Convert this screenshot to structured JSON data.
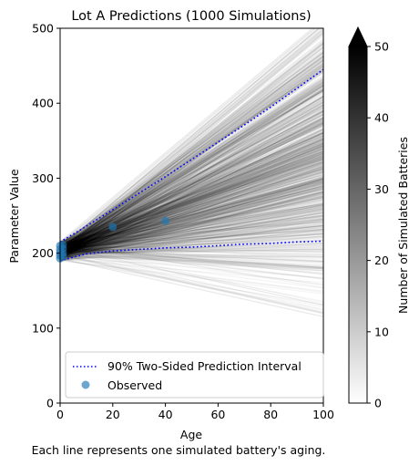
{
  "chart_data": {
    "type": "line",
    "title": "Lot A Predictions (1000 Simulations)",
    "xlabel": "Age",
    "ylabel": "Parameter Value",
    "caption": "Each line represents one simulated battery's aging.",
    "xlim": [
      0,
      100
    ],
    "ylim": [
      0,
      500
    ],
    "xticks": [
      0,
      20,
      40,
      60,
      80,
      100
    ],
    "yticks": [
      0,
      100,
      200,
      300,
      400,
      500
    ],
    "grid": false,
    "legend": {
      "placement": "lower-left",
      "entries": [
        "90% Two-Sided Prediction Interval",
        "Observed"
      ]
    },
    "simulations": {
      "count": 1000,
      "start_value_range": [
        190,
        215
      ],
      "end_value_at_100_range": [
        125,
        500
      ],
      "line_color": "#000000"
    },
    "series": [
      {
        "name": "90% Two-Sided Prediction Interval",
        "style": "dotted",
        "color": "#0000ff",
        "upper": {
          "x": [
            0,
            10,
            20,
            30,
            40,
            50,
            60,
            70,
            80,
            90,
            100
          ],
          "y": [
            215,
            236,
            258,
            280,
            302,
            325,
            348,
            371,
            395,
            420,
            445
          ]
        },
        "lower": {
          "x": [
            0,
            10,
            20,
            30,
            40,
            50,
            60,
            70,
            80,
            90,
            100
          ],
          "y": [
            190,
            199,
            203,
            205,
            207,
            208,
            210,
            212,
            213,
            215,
            216
          ]
        }
      },
      {
        "name": "Observed",
        "type": "scatter",
        "color": "#1f77b4",
        "x": [
          0,
          0,
          0,
          0,
          0,
          1,
          1,
          1,
          1,
          20,
          40
        ],
        "y": [
          193,
          197,
          201,
          205,
          210,
          196,
          200,
          206,
          211,
          235,
          243
        ]
      }
    ],
    "colorbar": {
      "label": "Number of Simulated Batteries",
      "range": [
        0,
        50
      ],
      "ticks": [
        0,
        10,
        20,
        30,
        40,
        50
      ],
      "colormap": "greys",
      "extend": "max"
    }
  }
}
